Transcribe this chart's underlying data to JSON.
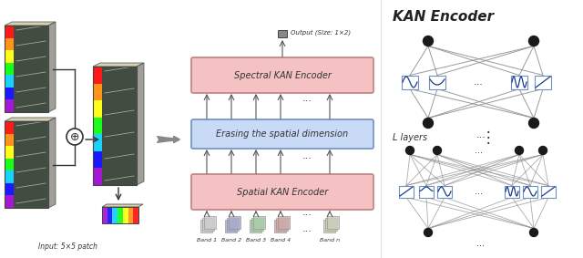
{
  "title": "KAN Encoder",
  "bg_color": "#ffffff",
  "middle_section": {
    "output_label": "Output (Size: 1×2)",
    "band_labels": [
      "Band 1",
      "Band 2",
      "Band 3",
      "Band 4",
      "Band n"
    ],
    "spectral_box": {
      "label": "Spectral KAN Encoder",
      "facecolor": "#f4c2c2",
      "edgecolor": "#c08080"
    },
    "erasing_box": {
      "label": "Erasing the spatial dimension",
      "facecolor": "#c8daf5",
      "edgecolor": "#7090c0"
    },
    "spatial_box": {
      "label": "Spatial KAN Encoder",
      "facecolor": "#f4c2c2",
      "edgecolor": "#c08080"
    }
  },
  "right_section": {
    "title": "KAN Encoder",
    "layers_label": "L layers"
  },
  "colors": {
    "node": "#222222",
    "box_edge": "#7090c0",
    "box_fill": "#ffffff",
    "curve": "#1a3a8a",
    "conn": "#888888",
    "arrow": "#555555",
    "text": "#333333"
  }
}
